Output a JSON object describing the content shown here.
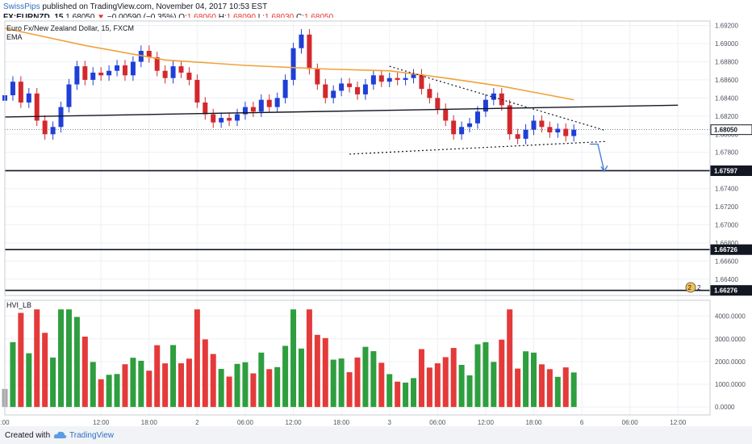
{
  "header": {
    "author": "SwissPips",
    "published_text": "published on TradingView.com, November 04, 2017 10:53 EST",
    "symbol": "FX:EURNZD, 15",
    "last": "1.68050",
    "change_arrow": "▼",
    "change": "−0.00590 (−0.35%)",
    "o_label": "O:",
    "o": "1.68060",
    "h_label": "H:",
    "h": "1.68090",
    "l_label": "L:",
    "l": "1.68030",
    "c_label": "C:",
    "c": "1.68050"
  },
  "footer": {
    "created_with": "Created with",
    "brand": "TradingView"
  },
  "chart_data": [
    {
      "type": "candlestick",
      "title": "Euro Fx/New Zealand Dollar, 15, FXCM",
      "study_label": "EMA",
      "ylim": [
        1.6622,
        1.6925
      ],
      "x_ticks": [
        {
          "t": 0,
          "label": ":00"
        },
        {
          "t": 12,
          "label": "12:00"
        },
        {
          "t": 18,
          "label": "18:00"
        },
        {
          "t": 24,
          "label": "2"
        },
        {
          "t": 30,
          "label": "06:00"
        },
        {
          "t": 36,
          "label": "12:00"
        },
        {
          "t": 42,
          "label": "18:00"
        },
        {
          "t": 48,
          "label": "3"
        },
        {
          "t": 54,
          "label": "06:00"
        },
        {
          "t": 60,
          "label": "12:00"
        },
        {
          "t": 66,
          "label": "18:00"
        },
        {
          "t": 72,
          "label": "6"
        },
        {
          "t": 78,
          "label": "06:00"
        },
        {
          "t": 84,
          "label": "12:00"
        }
      ],
      "y_ticks": [
        "1.69200",
        "1.69000",
        "1.68800",
        "1.68600",
        "1.68400",
        "1.68200",
        "1.68000",
        "1.67800",
        "1.67600",
        "1.67400",
        "1.67200",
        "1.67000",
        "1.66800",
        "1.66600",
        "1.66400"
      ],
      "y_tick_values": [
        1.692,
        1.69,
        1.688,
        1.686,
        1.684,
        1.682,
        1.68,
        1.678,
        1.676,
        1.674,
        1.672,
        1.67,
        1.668,
        1.666,
        1.664
      ],
      "price_labels": [
        {
          "label": "1.68050",
          "value": 1.6805
        },
        {
          "label": "1.67597",
          "value": 1.67597
        },
        {
          "label": "1.66726",
          "value": 1.66726
        },
        {
          "label": "1.66276",
          "value": 1.66276
        }
      ],
      "closes": [
        [
          0,
          1.6843
        ],
        [
          1,
          1.6858
        ],
        [
          2,
          1.6835
        ],
        [
          3,
          1.6845
        ],
        [
          4,
          1.6815
        ],
        [
          5,
          1.68
        ],
        [
          6,
          1.6808
        ],
        [
          7,
          1.683
        ],
        [
          8,
          1.6855
        ],
        [
          9,
          1.6875
        ],
        [
          10,
          1.686
        ],
        [
          11,
          1.6868
        ],
        [
          12,
          1.6865
        ],
        [
          13,
          1.687
        ],
        [
          14,
          1.6876
        ],
        [
          15,
          1.6865
        ],
        [
          16,
          1.688
        ],
        [
          17,
          1.6892
        ],
        [
          18,
          1.6885
        ],
        [
          19,
          1.687
        ],
        [
          20,
          1.6862
        ],
        [
          21,
          1.6875
        ],
        [
          22,
          1.6868
        ],
        [
          23,
          1.686
        ],
        [
          24,
          1.6835
        ],
        [
          25,
          1.6822
        ],
        [
          26,
          1.6813
        ],
        [
          27,
          1.6818
        ],
        [
          28,
          1.6815
        ],
        [
          29,
          1.6822
        ],
        [
          30,
          1.683
        ],
        [
          31,
          1.6825
        ],
        [
          32,
          1.6838
        ],
        [
          33,
          1.683
        ],
        [
          34,
          1.684
        ],
        [
          35,
          1.686
        ],
        [
          36,
          1.6895
        ],
        [
          37,
          1.691
        ],
        [
          38,
          1.6872
        ],
        [
          39,
          1.6855
        ],
        [
          40,
          1.684
        ],
        [
          41,
          1.6848
        ],
        [
          42,
          1.6856
        ],
        [
          43,
          1.6852
        ],
        [
          44,
          1.6844
        ],
        [
          45,
          1.6855
        ],
        [
          46,
          1.6865
        ],
        [
          47,
          1.6858
        ],
        [
          48,
          1.6862
        ],
        [
          49,
          1.686
        ],
        [
          50,
          1.6862
        ],
        [
          51,
          1.6866
        ],
        [
          52,
          1.685
        ],
        [
          53,
          1.684
        ],
        [
          54,
          1.6828
        ],
        [
          55,
          1.6815
        ],
        [
          56,
          1.68
        ],
        [
          57,
          1.6808
        ],
        [
          58,
          1.6812
        ],
        [
          59,
          1.6825
        ],
        [
          60,
          1.6838
        ],
        [
          61,
          1.6845
        ],
        [
          62,
          1.6832
        ],
        [
          63,
          1.68
        ],
        [
          64,
          1.6795
        ],
        [
          65,
          1.6805
        ],
        [
          66,
          1.6815
        ],
        [
          67,
          1.6808
        ],
        [
          68,
          1.6802
        ],
        [
          69,
          1.6806
        ],
        [
          70,
          1.6798
        ],
        [
          71,
          1.6805
        ]
      ],
      "ema": [
        [
          0,
          1.6917
        ],
        [
          10,
          1.6898
        ],
        [
          20,
          1.6882
        ],
        [
          30,
          1.6876
        ],
        [
          40,
          1.6872
        ],
        [
          48,
          1.687
        ],
        [
          55,
          1.6862
        ],
        [
          62,
          1.6853
        ],
        [
          68,
          1.6843
        ],
        [
          71,
          1.6838
        ]
      ],
      "drawings": {
        "horizontal_support": 1.67597,
        "support_2": 1.66726,
        "support_3": 1.66276,
        "trend_line": [
          [
            0,
            1.6819
          ],
          [
            84,
            1.6832
          ]
        ],
        "upper_wedge": [
          [
            48,
            1.6875
          ],
          [
            75,
            1.6804
          ]
        ],
        "lower_wedge": [
          [
            43,
            1.6778
          ],
          [
            75,
            1.6792
          ]
        ],
        "projection": [
          [
            73,
            1.6789
          ],
          [
            74,
            1.6789
          ],
          [
            74.8,
            1.6759
          ]
        ]
      }
    },
    {
      "type": "bar",
      "title": "HVI_LB",
      "ylim": [
        -350,
        4700
      ],
      "y_ticks": [
        "4000.0000",
        "3000.0000",
        "2000.0000",
        "1000.0000",
        "0.0000"
      ],
      "y_tick_values": [
        4000,
        3000,
        2000,
        1000,
        0
      ],
      "legend_overlay": "2"
    }
  ]
}
